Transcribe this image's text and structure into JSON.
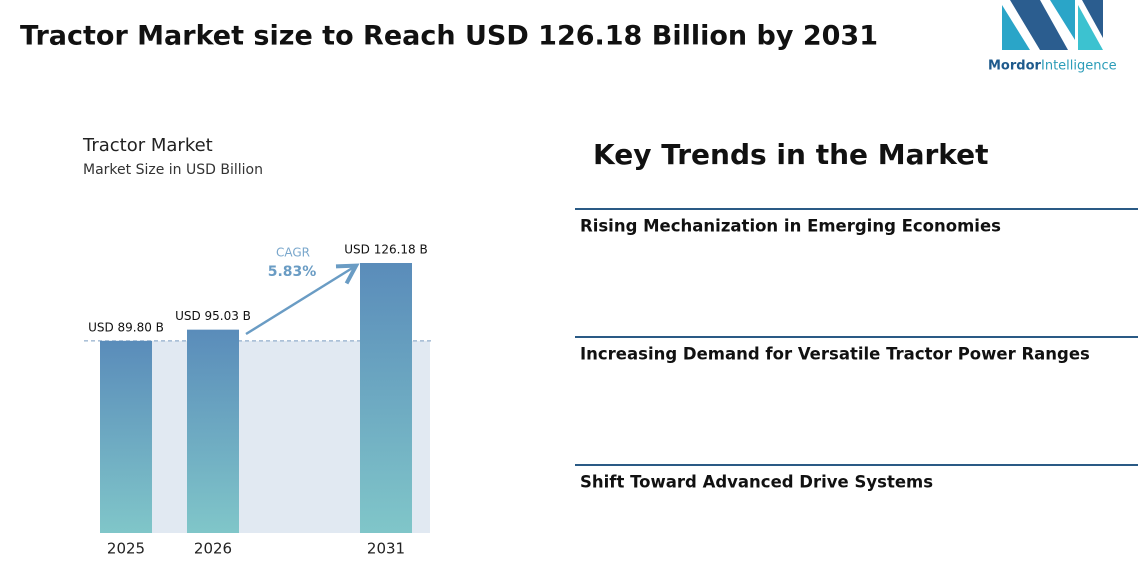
{
  "header": {
    "title": "Tractor Market size to Reach USD 126.18 Billion by 2031",
    "logo": {
      "brand": "Mordor",
      "suffix": "Intelligence"
    }
  },
  "chart_data": {
    "type": "bar",
    "title": "Tractor Market",
    "subtitle": "Market Size in USD Billion",
    "categories": [
      "2025",
      "2026",
      "2031"
    ],
    "values": [
      89.8,
      95.03,
      126.18
    ],
    "value_labels": [
      "USD 89.80 B",
      "USD 95.03 B",
      "USD 126.18 B"
    ],
    "annotations": [
      "CAGR",
      "5.83%"
    ]
  },
  "trends": {
    "title": "Key Trends in the Market",
    "items": [
      "Rising Mechanization in Emerging Economies",
      "Increasing Demand for Versatile Tractor Power Ranges",
      "Shift Toward Advanced Drive Systems"
    ]
  }
}
